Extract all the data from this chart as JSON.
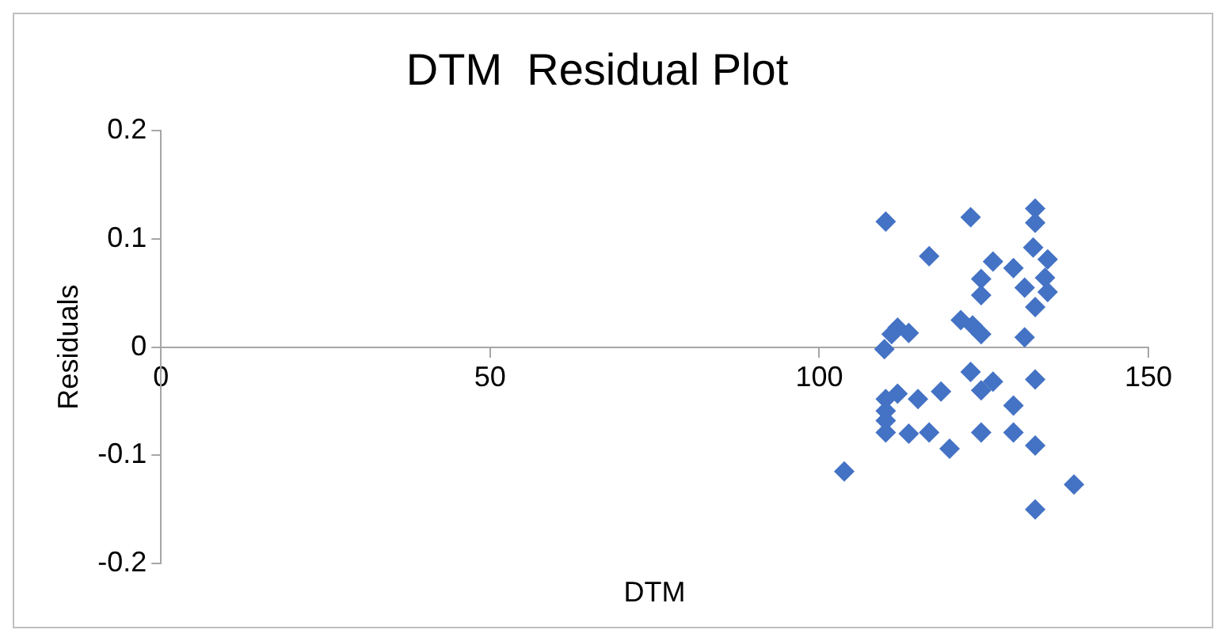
{
  "chart_data": {
    "type": "scatter",
    "title": "DTM  Residual Plot",
    "xlabel": "DTM",
    "ylabel": "Residuals",
    "x": [
      110.1,
      123.0,
      132.8,
      132.8,
      116.7,
      126.4,
      129.5,
      132.5,
      134.3,
      134.7,
      124.6,
      124.6,
      131.2,
      134.3,
      134.7,
      132.8,
      121.5,
      123.3,
      124.6,
      131.2,
      111.9,
      113.6,
      110.1,
      109.9,
      111.0,
      123.0,
      126.4,
      124.6,
      132.8,
      118.5,
      115.0,
      110.1,
      111.9,
      129.5,
      110.1,
      110.1,
      110.1,
      113.6,
      116.7,
      119.8,
      124.6,
      129.5,
      132.8,
      103.8,
      138.7,
      132.8
    ],
    "values": [
      0.116,
      0.12,
      0.128,
      0.115,
      0.084,
      0.079,
      0.073,
      0.092,
      null,
      0.081,
      0.063,
      0.048,
      0.055,
      0.064,
      0.051,
      0.037,
      0.025,
      0.02,
      0.012,
      0.009,
      0.018,
      0.013,
      null,
      -0.002,
      0.012,
      -0.023,
      -0.032,
      -0.04,
      -0.03,
      -0.041,
      -0.048,
      -0.048,
      -0.043,
      -0.054,
      -0.059,
      -0.068,
      -0.079,
      -0.08,
      -0.079,
      -0.094,
      -0.079,
      -0.079,
      -0.091,
      -0.115,
      -0.127,
      -0.15
    ],
    "color": "#4472c4",
    "marker": "diamond",
    "xlim": [
      0,
      150
    ],
    "xticks": [
      0,
      50,
      100,
      150
    ],
    "ylim": [
      -0.2,
      0.2
    ],
    "yticks": [
      -0.2,
      -0.1,
      0,
      0.1,
      0.2
    ],
    "grid": false,
    "legend": false
  }
}
